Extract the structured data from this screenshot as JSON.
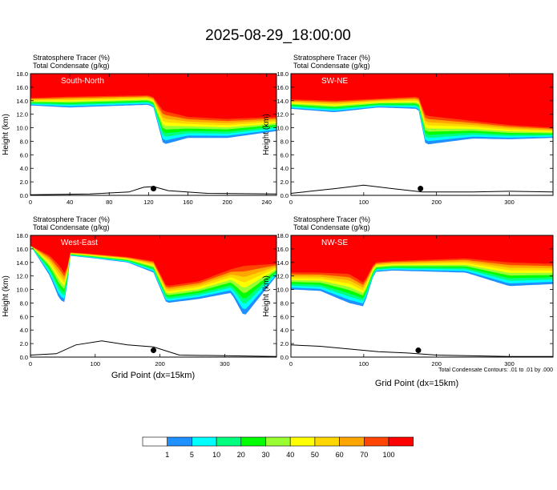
{
  "main_title": "2025-08-29_18:00:00",
  "field_label_1": "Stratosphere Tracer    (%)",
  "field_label_2": "Total Condensate    (g/kg)",
  "y_axis_label": "Height (km)",
  "x_axis_label": "Grid Point (dx=15km)",
  "contour_note": "Total Condensate Contours: .01 to .01 by .000",
  "colors": {
    "fill_levels": [
      "#ffffff",
      "#1e90ff",
      "#00ffff",
      "#00ff7f",
      "#00ff00",
      "#9aff32",
      "#ffff00",
      "#ffd700",
      "#ffa500",
      "#ff4500",
      "#ff0000"
    ],
    "terrain": "#000000"
  },
  "colorbar": {
    "labels": [
      "1",
      "5",
      "10",
      "20",
      "30",
      "40",
      "50",
      "60",
      "70",
      "100"
    ]
  },
  "chart_data": [
    {
      "type": "heatmap",
      "panel": "South-North",
      "title": "South-North",
      "subtitle_1": "Stratosphere Tracer    (%)",
      "subtitle_2": "Total Condensate    (g/kg)",
      "xlim": [
        0,
        250
      ],
      "ylim": [
        0,
        18
      ],
      "x_ticks": [
        "0",
        "40",
        "80",
        "120",
        "160",
        "200",
        "240"
      ],
      "x_tick_values": [
        0,
        40,
        80,
        120,
        160,
        200,
        240
      ],
      "y_ticks": [
        "0.0",
        "2.0",
        "4.0",
        "6.0",
        "8.0",
        "10.0",
        "12.0",
        "14.0",
        "16.0",
        "18.0"
      ],
      "y_tick_values": [
        0,
        2,
        4,
        6,
        8,
        10,
        12,
        14,
        16,
        18
      ],
      "tracer_100_base_km": [
        [
          0,
          14.4
        ],
        [
          40,
          14.6
        ],
        [
          80,
          14.7
        ],
        [
          120,
          14.8
        ],
        [
          125,
          14.5
        ],
        [
          135,
          12.5
        ],
        [
          160,
          11.6
        ],
        [
          200,
          11.3
        ],
        [
          250,
          11.6
        ]
      ],
      "tracer_1_base_km": [
        [
          0,
          13.3
        ],
        [
          40,
          13.0
        ],
        [
          80,
          13.2
        ],
        [
          120,
          13.4
        ],
        [
          125,
          13.0
        ],
        [
          135,
          7.5
        ],
        [
          160,
          8.5
        ],
        [
          200,
          8.5
        ],
        [
          250,
          9.5
        ]
      ],
      "terrain_km": [
        [
          0,
          0.1
        ],
        [
          60,
          0.2
        ],
        [
          100,
          0.5
        ],
        [
          115,
          1.2
        ],
        [
          125,
          1.3
        ],
        [
          140,
          0.7
        ],
        [
          180,
          0.3
        ],
        [
          250,
          0.2
        ]
      ],
      "marker": [
        125,
        1.0
      ]
    },
    {
      "type": "heatmap",
      "panel": "SW-NE",
      "title": "SW-NE",
      "subtitle_1": "Stratosphere Tracer    (%)",
      "subtitle_2": "Total Condensate    (g/kg)",
      "xlim": [
        0,
        360
      ],
      "ylim": [
        0,
        18
      ],
      "x_ticks": [
        "0",
        "100",
        "200",
        "300"
      ],
      "x_tick_values": [
        0,
        100,
        200,
        300
      ],
      "y_ticks": [
        "0.0",
        "2.0",
        "4.0",
        "6.0",
        "8.0",
        "10.0",
        "12.0",
        "14.0",
        "16.0",
        "18.0"
      ],
      "y_tick_values": [
        0,
        2,
        4,
        6,
        8,
        10,
        12,
        14,
        16,
        18
      ],
      "tracer_100_base_km": [
        [
          0,
          14.2
        ],
        [
          60,
          14.0
        ],
        [
          120,
          14.3
        ],
        [
          175,
          14.6
        ],
        [
          185,
          11.8
        ],
        [
          250,
          11.0
        ],
        [
          300,
          10.4
        ],
        [
          360,
          10.0
        ]
      ],
      "tracer_1_base_km": [
        [
          0,
          12.8
        ],
        [
          60,
          12.3
        ],
        [
          120,
          13.0
        ],
        [
          175,
          12.8
        ],
        [
          185,
          7.5
        ],
        [
          250,
          8.4
        ],
        [
          300,
          8.3
        ],
        [
          360,
          8.5
        ]
      ],
      "terrain_km": [
        [
          0,
          0.3
        ],
        [
          60,
          1.0
        ],
        [
          100,
          1.5
        ],
        [
          140,
          1.0
        ],
        [
          180,
          0.5
        ],
        [
          250,
          0.5
        ],
        [
          300,
          0.6
        ],
        [
          360,
          0.5
        ]
      ],
      "marker": [
        178,
        1.0
      ]
    },
    {
      "type": "heatmap",
      "panel": "West-East",
      "title": "West-East",
      "subtitle_1": "Stratosphere Tracer    (%)",
      "subtitle_2": "Total Condensate    (g/kg)",
      "xlim": [
        0,
        380
      ],
      "ylim": [
        0,
        18
      ],
      "x_ticks": [
        "0",
        "100",
        "200",
        "300"
      ],
      "x_tick_values": [
        0,
        100,
        200,
        300
      ],
      "y_ticks": [
        "0.0",
        "2.0",
        "4.0",
        "6.0",
        "8.0",
        "10.0",
        "12.0",
        "14.0",
        "16.0",
        "18.0"
      ],
      "y_tick_values": [
        0,
        2,
        4,
        6,
        8,
        10,
        12,
        14,
        16,
        18
      ],
      "tracer_100_base_km": [
        [
          0,
          16.5
        ],
        [
          30,
          15.0
        ],
        [
          45,
          13.5
        ],
        [
          55,
          12.0
        ],
        [
          60,
          15.5
        ],
        [
          90,
          15.3
        ],
        [
          150,
          14.8
        ],
        [
          190,
          14.2
        ],
        [
          210,
          10.5
        ],
        [
          260,
          11.2
        ],
        [
          310,
          13.0
        ],
        [
          330,
          13.5
        ],
        [
          380,
          13.8
        ]
      ],
      "tracer_1_base_km": [
        [
          0,
          16.5
        ],
        [
          30,
          12.0
        ],
        [
          45,
          8.5
        ],
        [
          55,
          8.0
        ],
        [
          60,
          15.0
        ],
        [
          90,
          14.7
        ],
        [
          150,
          14.0
        ],
        [
          190,
          12.5
        ],
        [
          210,
          8.0
        ],
        [
          260,
          8.6
        ],
        [
          310,
          9.5
        ],
        [
          330,
          6.0
        ],
        [
          380,
          12.0
        ]
      ],
      "terrain_km": [
        [
          0,
          0.3
        ],
        [
          40,
          0.5
        ],
        [
          70,
          1.8
        ],
        [
          110,
          2.4
        ],
        [
          150,
          1.8
        ],
        [
          190,
          1.5
        ],
        [
          230,
          0.3
        ],
        [
          300,
          0.2
        ],
        [
          380,
          0.1
        ]
      ],
      "marker": [
        190,
        1.0
      ]
    },
    {
      "type": "heatmap",
      "panel": "NW-SE",
      "title": "NW-SE",
      "subtitle_1": "Stratosphere Tracer    (%)",
      "subtitle_2": "Total Condensate    (g/kg)",
      "xlim": [
        0,
        360
      ],
      "ylim": [
        0,
        18
      ],
      "x_ticks": [
        "0",
        "100",
        "200",
        "300"
      ],
      "x_tick_values": [
        0,
        100,
        200,
        300
      ],
      "y_ticks": [
        "0.0",
        "2.0",
        "4.0",
        "6.0",
        "8.0",
        "10.0",
        "12.0",
        "14.0",
        "16.0",
        "18.0"
      ],
      "y_tick_values": [
        0,
        2,
        4,
        6,
        8,
        10,
        12,
        14,
        16,
        18
      ],
      "tracer_100_base_km": [
        [
          0,
          12.5
        ],
        [
          40,
          12.5
        ],
        [
          80,
          12.3
        ],
        [
          100,
          11.0
        ],
        [
          115,
          14.0
        ],
        [
          140,
          14.2
        ],
        [
          240,
          14.6
        ],
        [
          300,
          14.0
        ],
        [
          360,
          13.8
        ]
      ],
      "tracer_1_base_km": [
        [
          0,
          10.0
        ],
        [
          40,
          9.8
        ],
        [
          80,
          8.0
        ],
        [
          100,
          7.5
        ],
        [
          115,
          12.6
        ],
        [
          140,
          12.8
        ],
        [
          240,
          12.5
        ],
        [
          300,
          10.5
        ],
        [
          360,
          10.8
        ]
      ],
      "terrain_km": [
        [
          0,
          1.8
        ],
        [
          40,
          1.6
        ],
        [
          80,
          1.2
        ],
        [
          120,
          0.8
        ],
        [
          160,
          0.6
        ],
        [
          200,
          0.3
        ],
        [
          300,
          0.1
        ],
        [
          360,
          0.1
        ]
      ],
      "marker": [
        175,
        1.0
      ]
    }
  ]
}
